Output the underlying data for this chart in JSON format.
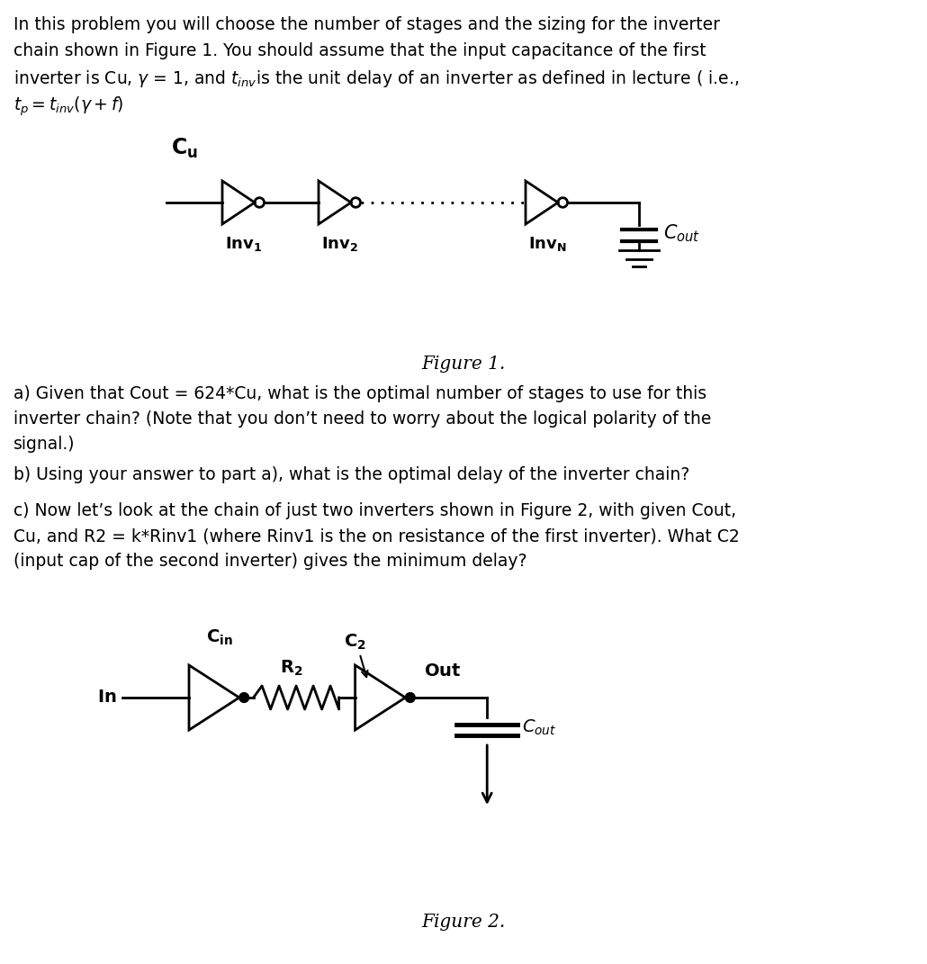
{
  "fig_width": 10.3,
  "fig_height": 10.71,
  "bg_color": "#ffffff",
  "text_color": "#000000",
  "figure1_caption": "Figure 1.",
  "figure2_caption": "Figure 2.",
  "font_size_main": 13.5,
  "font_size_fig_caption": 14.5,
  "line_color": "#000000",
  "line_width": 2.0,
  "intro_line1": "In this problem you will choose the number of stages and the sizing for the inverter",
  "intro_line2": "chain shown in Figure 1. You should assume that the input capacitance of the first",
  "intro_line3": "inverter is Cu, $\\gamma$ = 1, and $t_{inv}$is the unit delay of an inverter as defined in lecture ( i.e.,",
  "intro_line4": "$t_p = t_{inv}(\\gamma + f)$",
  "part_a_line1": "a) Given that Cout = 624*Cu, what is the optimal number of stages to use for this",
  "part_a_line2": "inverter chain? (Note that you don’t need to worry about the logical polarity of the",
  "part_a_line3": "signal.)",
  "part_b": "b) Using your answer to part a), what is the optimal delay of the inverter chain?",
  "part_c_line1": "c) Now let’s look at the chain of just two inverters shown in Figure 2, with given Cout,",
  "part_c_line2": "Cu, and R2 = k*Rinv1 (where Rinv1 is the on resistance of the first inverter). What C2",
  "part_c_line3": "(input cap of the second inverter) gives the minimum delay?"
}
